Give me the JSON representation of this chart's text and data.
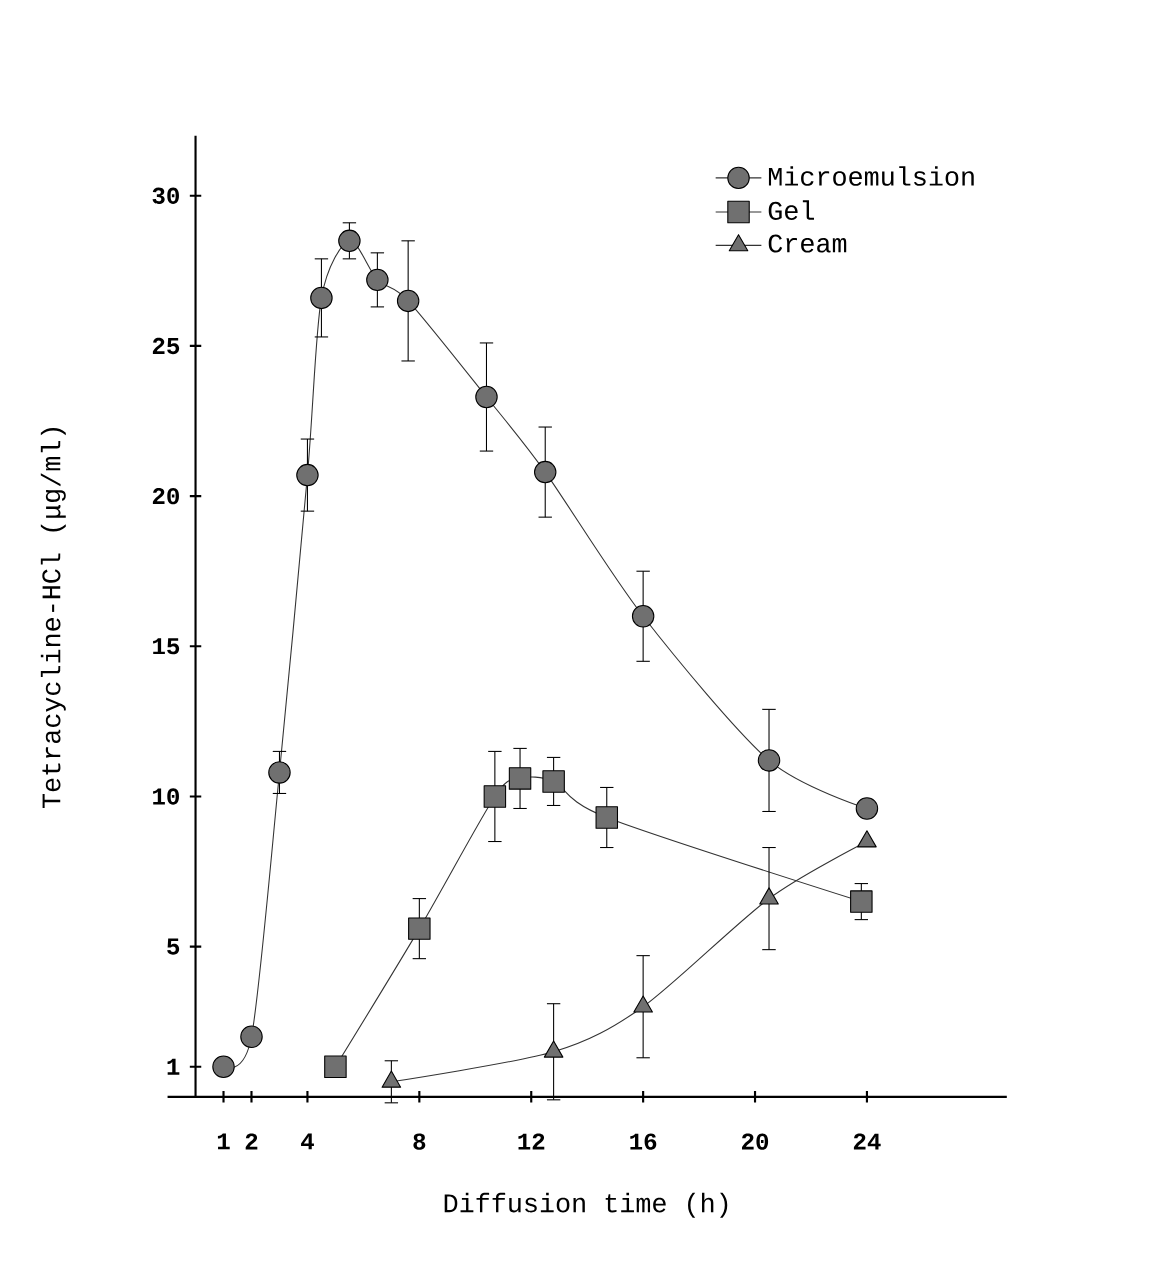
{
  "chart_data": {
    "type": "line",
    "xlabel": "Diffusion time (h)",
    "ylabel": "Tetracycline-HCl (μg/ml)",
    "xlim": [
      -1,
      29
    ],
    "ylim": [
      0,
      32
    ],
    "xticks": [
      1,
      2,
      4,
      8,
      12,
      16,
      20,
      24
    ],
    "yticks": [
      1,
      5,
      10,
      15,
      20,
      25,
      30
    ],
    "grid": false,
    "legend": "top right",
    "line_style": "solid",
    "series": [
      {
        "name": "Microemulsion",
        "color": "#333333",
        "marker": "circle",
        "x": [
          1,
          2,
          3,
          4,
          4.5,
          5.5,
          6.5,
          7.6,
          10.4,
          12.5,
          16,
          20.5,
          24
        ],
        "values": [
          1.0,
          2.0,
          10.8,
          20.7,
          26.6,
          28.5,
          27.2,
          26.5,
          23.3,
          20.8,
          16.0,
          11.2,
          9.6
        ],
        "errors": [
          null,
          null,
          0.7,
          1.2,
          1.3,
          0.6,
          0.9,
          2.0,
          1.8,
          1.5,
          1.5,
          1.7,
          null
        ]
      },
      {
        "name": "Gel",
        "color": "#333333",
        "marker": "square",
        "x": [
          5,
          8,
          10.7,
          11.6,
          12.8,
          14.7,
          23.8
        ],
        "values": [
          1.0,
          5.6,
          10.0,
          10.6,
          10.5,
          9.3,
          6.5
        ],
        "errors": [
          null,
          1.0,
          1.5,
          1.0,
          0.8,
          1.0,
          0.6
        ]
      },
      {
        "name": "Cream",
        "color": "#333333",
        "marker": "triangle",
        "x": [
          7,
          12.8,
          16,
          20.5,
          24
        ],
        "values": [
          0.5,
          1.5,
          3.0,
          6.6,
          8.5
        ],
        "errors": [
          0.7,
          1.6,
          1.7,
          1.7,
          null
        ]
      }
    ]
  }
}
